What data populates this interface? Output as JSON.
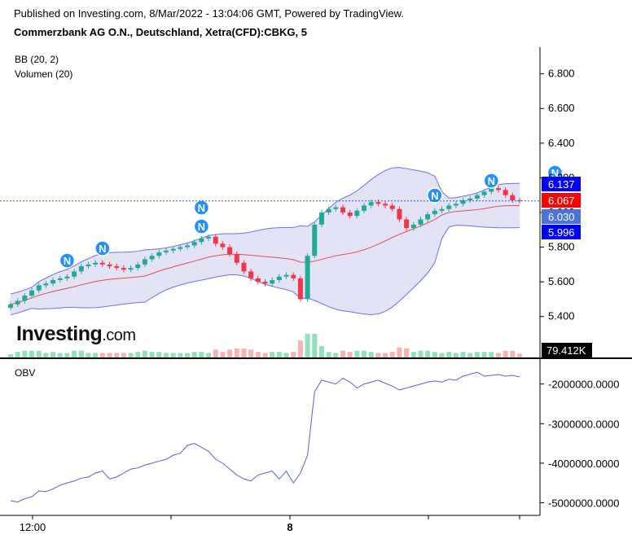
{
  "header": {
    "published": "Published on Investing.com, 8/Mar/2022 - 13:04:06 GMT, Powered by TradingView.",
    "symbol": "Commerzbank AG O.N., Deutschland, Xetra(CFD):CBKG, 5"
  },
  "legend": {
    "bb": "BB (20, 2)",
    "volume": "Volumen (20)",
    "obv": "OBV"
  },
  "logo": {
    "brand": "Investing",
    "suffix": ".com"
  },
  "price_badges": [
    {
      "text": "6.137",
      "value": 6.137,
      "color": "#0000ff"
    },
    {
      "text": "6.067",
      "value": 6.067,
      "color": "#ff0000"
    },
    {
      "text": "6.030",
      "value": 6.03,
      "color": "#4b73e0"
    },
    {
      "text": "5.996",
      "value": 5.996,
      "color": "#0000ff"
    }
  ],
  "volume_badge": {
    "text": "79.412K",
    "color": "#000000"
  },
  "colors": {
    "up": "#22ab94",
    "down": "#f23645",
    "band": "#6e6ef0",
    "band_fill": "#e3e3f5",
    "basis": "#e05050",
    "obv": "#5a5ae6",
    "vol_up": "#8fe0bd",
    "vol_down": "#f7b2b2"
  },
  "chart_data": [
    {
      "type": "candlestick",
      "title": "Commerzbank AG O.N., Deutschland, Xetra(CFD):CBKG, 5",
      "ylim": [
        5.3,
        6.85
      ],
      "yticks": [
        "6.800",
        "6.600",
        "6.400",
        "6.200",
        "6.000",
        "5.800",
        "5.600",
        "5.400"
      ],
      "xticks": [
        "12:00",
        "8"
      ],
      "indicators": [
        "BB (20, 2)",
        "Volumen (20)"
      ],
      "last_price": 6.067,
      "series": [
        {
          "name": "close",
          "values": [
            5.47,
            5.49,
            5.52,
            5.55,
            5.58,
            5.59,
            5.61,
            5.62,
            5.63,
            5.66,
            5.69,
            5.7,
            5.71,
            5.7,
            5.69,
            5.68,
            5.67,
            5.68,
            5.7,
            5.73,
            5.75,
            5.77,
            5.78,
            5.79,
            5.8,
            5.81,
            5.83,
            5.85,
            5.86,
            5.82,
            5.8,
            5.76,
            5.71,
            5.66,
            5.62,
            5.6,
            5.59,
            5.61,
            5.63,
            5.64,
            5.62,
            5.5,
            5.75,
            5.93,
            6.0,
            6.02,
            6.03,
            6.0,
            5.98,
            6.01,
            6.04,
            6.06,
            6.05,
            6.04,
            6.02,
            5.96,
            5.91,
            5.93,
            5.96,
            5.99,
            6.01,
            6.02,
            6.04,
            6.05,
            6.07,
            6.08,
            6.1,
            6.12,
            6.14,
            6.13,
            6.1,
            6.07,
            6.067
          ]
        }
      ]
    },
    {
      "type": "line",
      "title": "OBV",
      "ylim": [
        -5300000,
        -1450000
      ],
      "yticks": [
        "-2000000.0000",
        "-3000000.0000",
        "-4000000.0000",
        "-5000000.0000"
      ],
      "series": [
        {
          "name": "OBV",
          "values": [
            -4950000,
            -4980000,
            -4900000,
            -4850000,
            -4700000,
            -4720000,
            -4650000,
            -4560000,
            -4500000,
            -4450000,
            -4380000,
            -4350000,
            -4250000,
            -4200000,
            -4400000,
            -4350000,
            -4250000,
            -4150000,
            -4120000,
            -4050000,
            -4000000,
            -3950000,
            -3900000,
            -3800000,
            -3750000,
            -3550000,
            -3500000,
            -3600000,
            -3700000,
            -3900000,
            -4000000,
            -4150000,
            -4300000,
            -4400000,
            -4450000,
            -4300000,
            -4250000,
            -4200000,
            -4400000,
            -4200000,
            -4500000,
            -4250000,
            -3800000,
            -2200000,
            -1900000,
            -1950000,
            -2000000,
            -1850000,
            -1950000,
            -2100000,
            -2000000,
            -1950000,
            -1900000,
            -1980000,
            -2050000,
            -2150000,
            -2100000,
            -2050000,
            -2000000,
            -1950000,
            -1920000,
            -1950000,
            -1880000,
            -1900000,
            -1800000,
            -1750000,
            -1700000,
            -1800000,
            -1780000,
            -1760000,
            -1800000,
            -1780000,
            -1820000
          ]
        }
      ]
    }
  ]
}
